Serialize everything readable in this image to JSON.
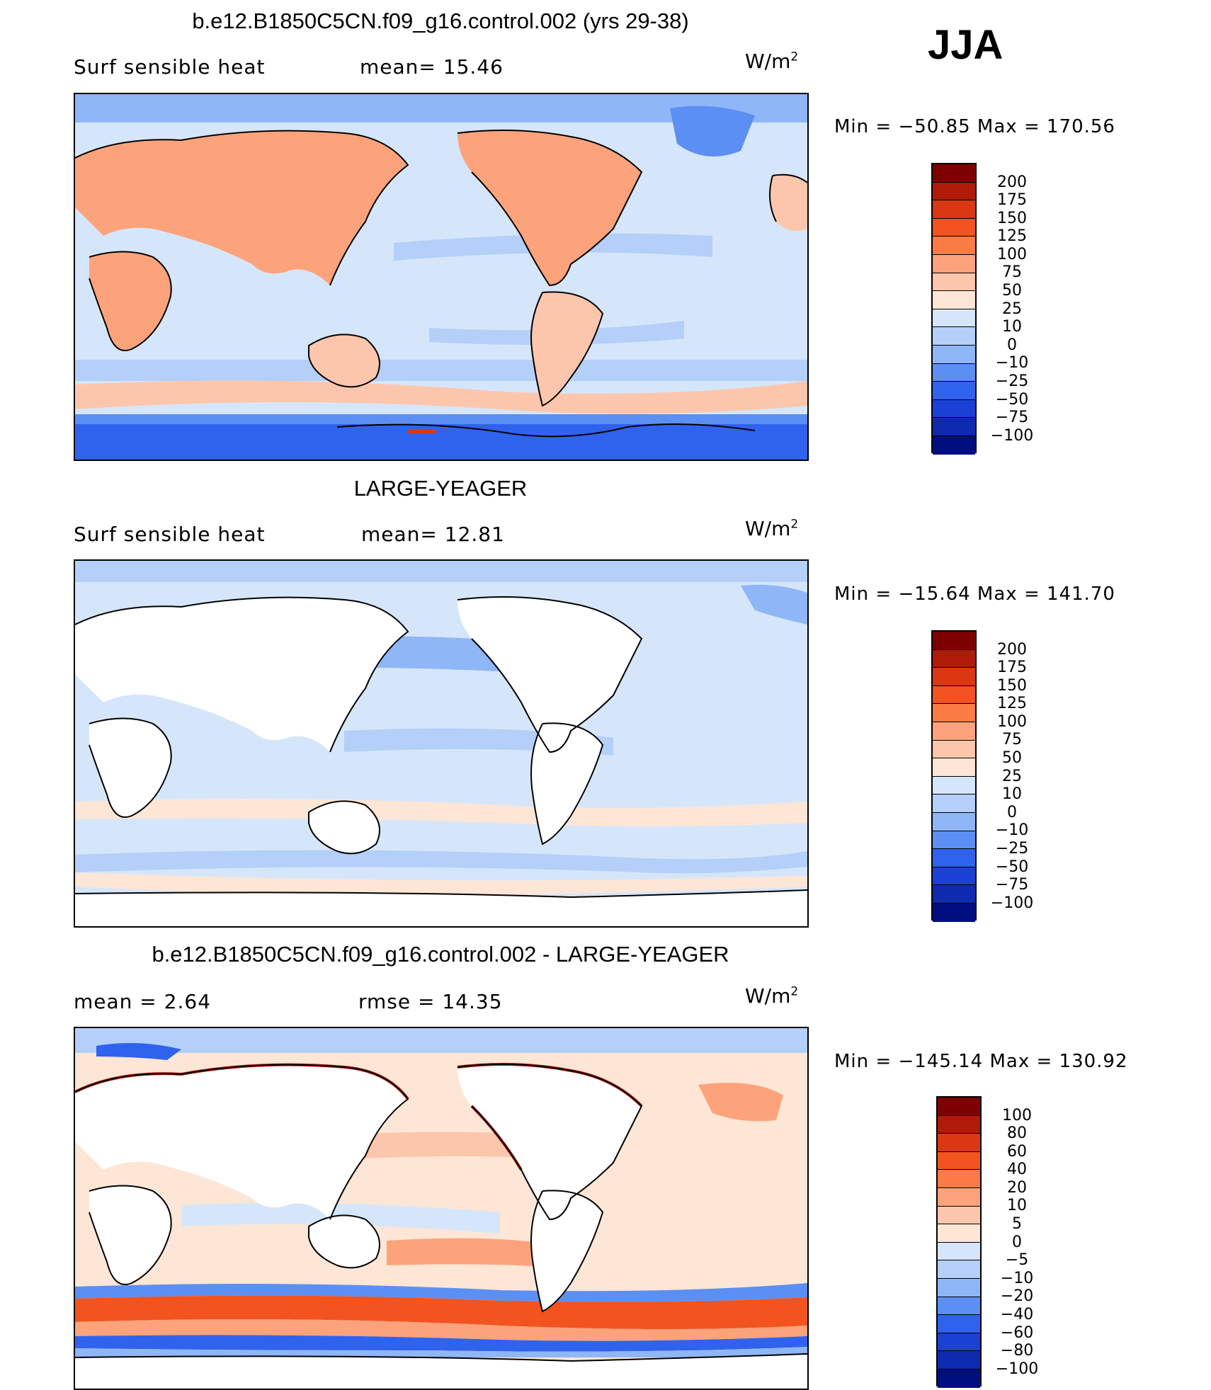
{
  "season": "JJA",
  "panels": [
    {
      "title": "b.e12.B1850C5CN.f09_g16.control.002 (yrs 29-38)",
      "left_text": "Surf  sensible  heat",
      "mid_text": "mean=   15.46",
      "units": "W/m",
      "units_sup": "2",
      "minmax": "Min  =  −50.85  Max  =  170.56",
      "colorbar": {
        "labels": [
          "200",
          "175",
          "150",
          "125",
          "100",
          "75",
          "50",
          "25",
          "10",
          "0",
          "−10",
          "−25",
          "−50",
          "−75",
          "−100"
        ],
        "colors": [
          "#7f0000",
          "#b01b08",
          "#d93812",
          "#f2531f",
          "#fb7b45",
          "#fca37c",
          "#fcc6ac",
          "#fde6d6",
          "#d6e6fa",
          "#b4cff8",
          "#8fb6f6",
          "#5c8ff3",
          "#2f63ee",
          "#1a40d6",
          "#0e2bb0",
          "#000f80"
        ]
      },
      "ocean_fill": "#d6e6fa",
      "land_fill": "#fca37c"
    },
    {
      "title": "LARGE-YEAGER",
      "left_text": "Surf  sensible  heat",
      "mid_text": "mean=   12.81",
      "units": "W/m",
      "units_sup": "2",
      "minmax": "Min  =  −15.64  Max  =  141.70",
      "colorbar": {
        "labels": [
          "200",
          "175",
          "150",
          "125",
          "100",
          "75",
          "50",
          "25",
          "10",
          "0",
          "−10",
          "−25",
          "−50",
          "−75",
          "−100"
        ],
        "colors": [
          "#7f0000",
          "#b01b08",
          "#d93812",
          "#f2531f",
          "#fb7b45",
          "#fca37c",
          "#fcc6ac",
          "#fde6d6",
          "#d6e6fa",
          "#b4cff8",
          "#8fb6f6",
          "#5c8ff3",
          "#2f63ee",
          "#1a40d6",
          "#0e2bb0",
          "#000f80"
        ]
      },
      "ocean_fill": "#d6e6fa",
      "land_fill": "#ffffff"
    },
    {
      "title": "b.e12.B1850C5CN.f09_g16.control.002 - LARGE-YEAGER",
      "left_text": "mean  =     2.64",
      "mid_text": "rmse  =    14.35",
      "units": "W/m",
      "units_sup": "2",
      "minmax": "Min  =  −145.14  Max  =  130.92",
      "colorbar": {
        "labels": [
          "100",
          "80",
          "60",
          "40",
          "20",
          "10",
          "5",
          "0",
          "−5",
          "−10",
          "−20",
          "−40",
          "−60",
          "−80",
          "−100"
        ],
        "colors": [
          "#7f0000",
          "#b01b08",
          "#d93812",
          "#f2531f",
          "#fb7b45",
          "#fca37c",
          "#fcc6ac",
          "#fde6d6",
          "#d6e6fa",
          "#b4cff8",
          "#8fb6f6",
          "#5c8ff3",
          "#2f63ee",
          "#1a40d6",
          "#0e2bb0",
          "#000f80"
        ]
      },
      "ocean_fill": "#fde6d6",
      "land_fill": "#ffffff"
    }
  ]
}
